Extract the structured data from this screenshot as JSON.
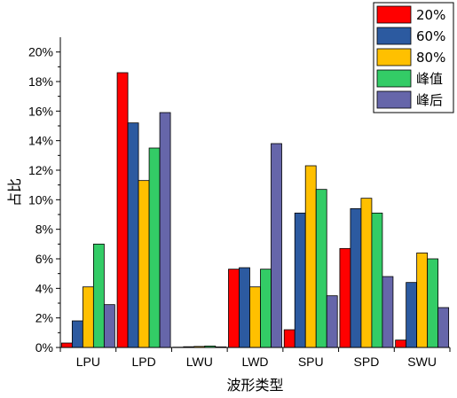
{
  "chart_data": {
    "type": "bar",
    "title": "",
    "xlabel": "波形类型",
    "ylabel": "占比",
    "categories": [
      "LPU",
      "LPD",
      "LWU",
      "LWD",
      "SPU",
      "SPD",
      "SWU"
    ],
    "ylim": [
      0,
      21
    ],
    "yticks": [
      0,
      2,
      4,
      6,
      8,
      10,
      12,
      14,
      16,
      18,
      20
    ],
    "ytick_suffix": "%",
    "grid": false,
    "legend_position": "top-right",
    "series": [
      {
        "name": "20%",
        "color": "#ff0000",
        "values": [
          0.3,
          18.6,
          0.02,
          5.3,
          1.2,
          6.7,
          0.5
        ]
      },
      {
        "name": "60%",
        "color": "#2c5aa0",
        "values": [
          1.8,
          15.2,
          0.05,
          5.4,
          9.1,
          9.4,
          4.4
        ]
      },
      {
        "name": "80%",
        "color": "#ffc000",
        "values": [
          4.1,
          11.3,
          0.07,
          4.1,
          12.3,
          10.1,
          6.4
        ]
      },
      {
        "name": "峰值",
        "color": "#33cc66",
        "values": [
          7.0,
          13.5,
          0.1,
          5.3,
          10.7,
          9.1,
          6.0
        ]
      },
      {
        "name": "峰后",
        "color": "#6666aa",
        "values": [
          2.9,
          15.9,
          0.04,
          13.8,
          3.5,
          4.8,
          2.7
        ]
      }
    ]
  }
}
